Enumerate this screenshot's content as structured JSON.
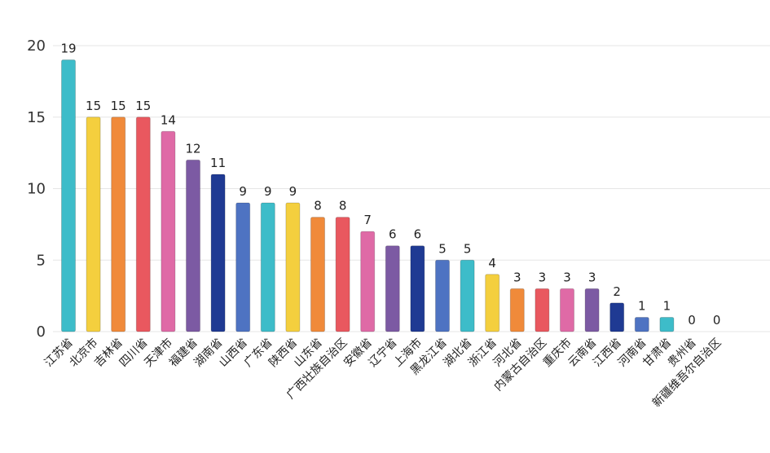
{
  "chart_data": {
    "type": "bar",
    "title": "",
    "xlabel": "",
    "ylabel": "",
    "ylim": [
      0,
      20
    ],
    "yticks": [
      0,
      5,
      10,
      15,
      20
    ],
    "grid": true,
    "categories": [
      "江苏省",
      "北京市",
      "吉林省",
      "四川省",
      "天津市",
      "福建省",
      "湖南省",
      "山西省",
      "广东省",
      "陕西省",
      "山东省",
      "广西壮族自治区",
      "安徽省",
      "辽宁省",
      "上海市",
      "黑龙江省",
      "湖北省",
      "浙江省",
      "河北省",
      "内蒙古自治区",
      "重庆市",
      "云南省",
      "江西省",
      "河南省",
      "甘肃省",
      "贵州省",
      "新疆维吾尔自治区"
    ],
    "values": [
      19,
      15,
      15,
      15,
      14,
      12,
      11,
      9,
      9,
      9,
      8,
      8,
      7,
      6,
      6,
      5,
      5,
      4,
      3,
      3,
      3,
      3,
      2,
      1,
      1,
      0,
      0
    ],
    "colors": [
      "#3dbcc9",
      "#f4cf3e",
      "#f08a3a",
      "#e9585f",
      "#df6aa6",
      "#7c5aa3",
      "#1f3a93",
      "#4e73c2",
      "#3dbcc9",
      "#f4cf3e",
      "#f08a3a",
      "#e9585f",
      "#df6aa6",
      "#7c5aa3",
      "#1f3a93",
      "#4e73c2",
      "#3dbcc9",
      "#f4cf3e",
      "#f08a3a",
      "#e9585f",
      "#df6aa6",
      "#7c5aa3",
      "#1f3a93",
      "#4e73c2",
      "#3dbcc9",
      "#f4cf3e",
      "#f08a3a"
    ]
  }
}
